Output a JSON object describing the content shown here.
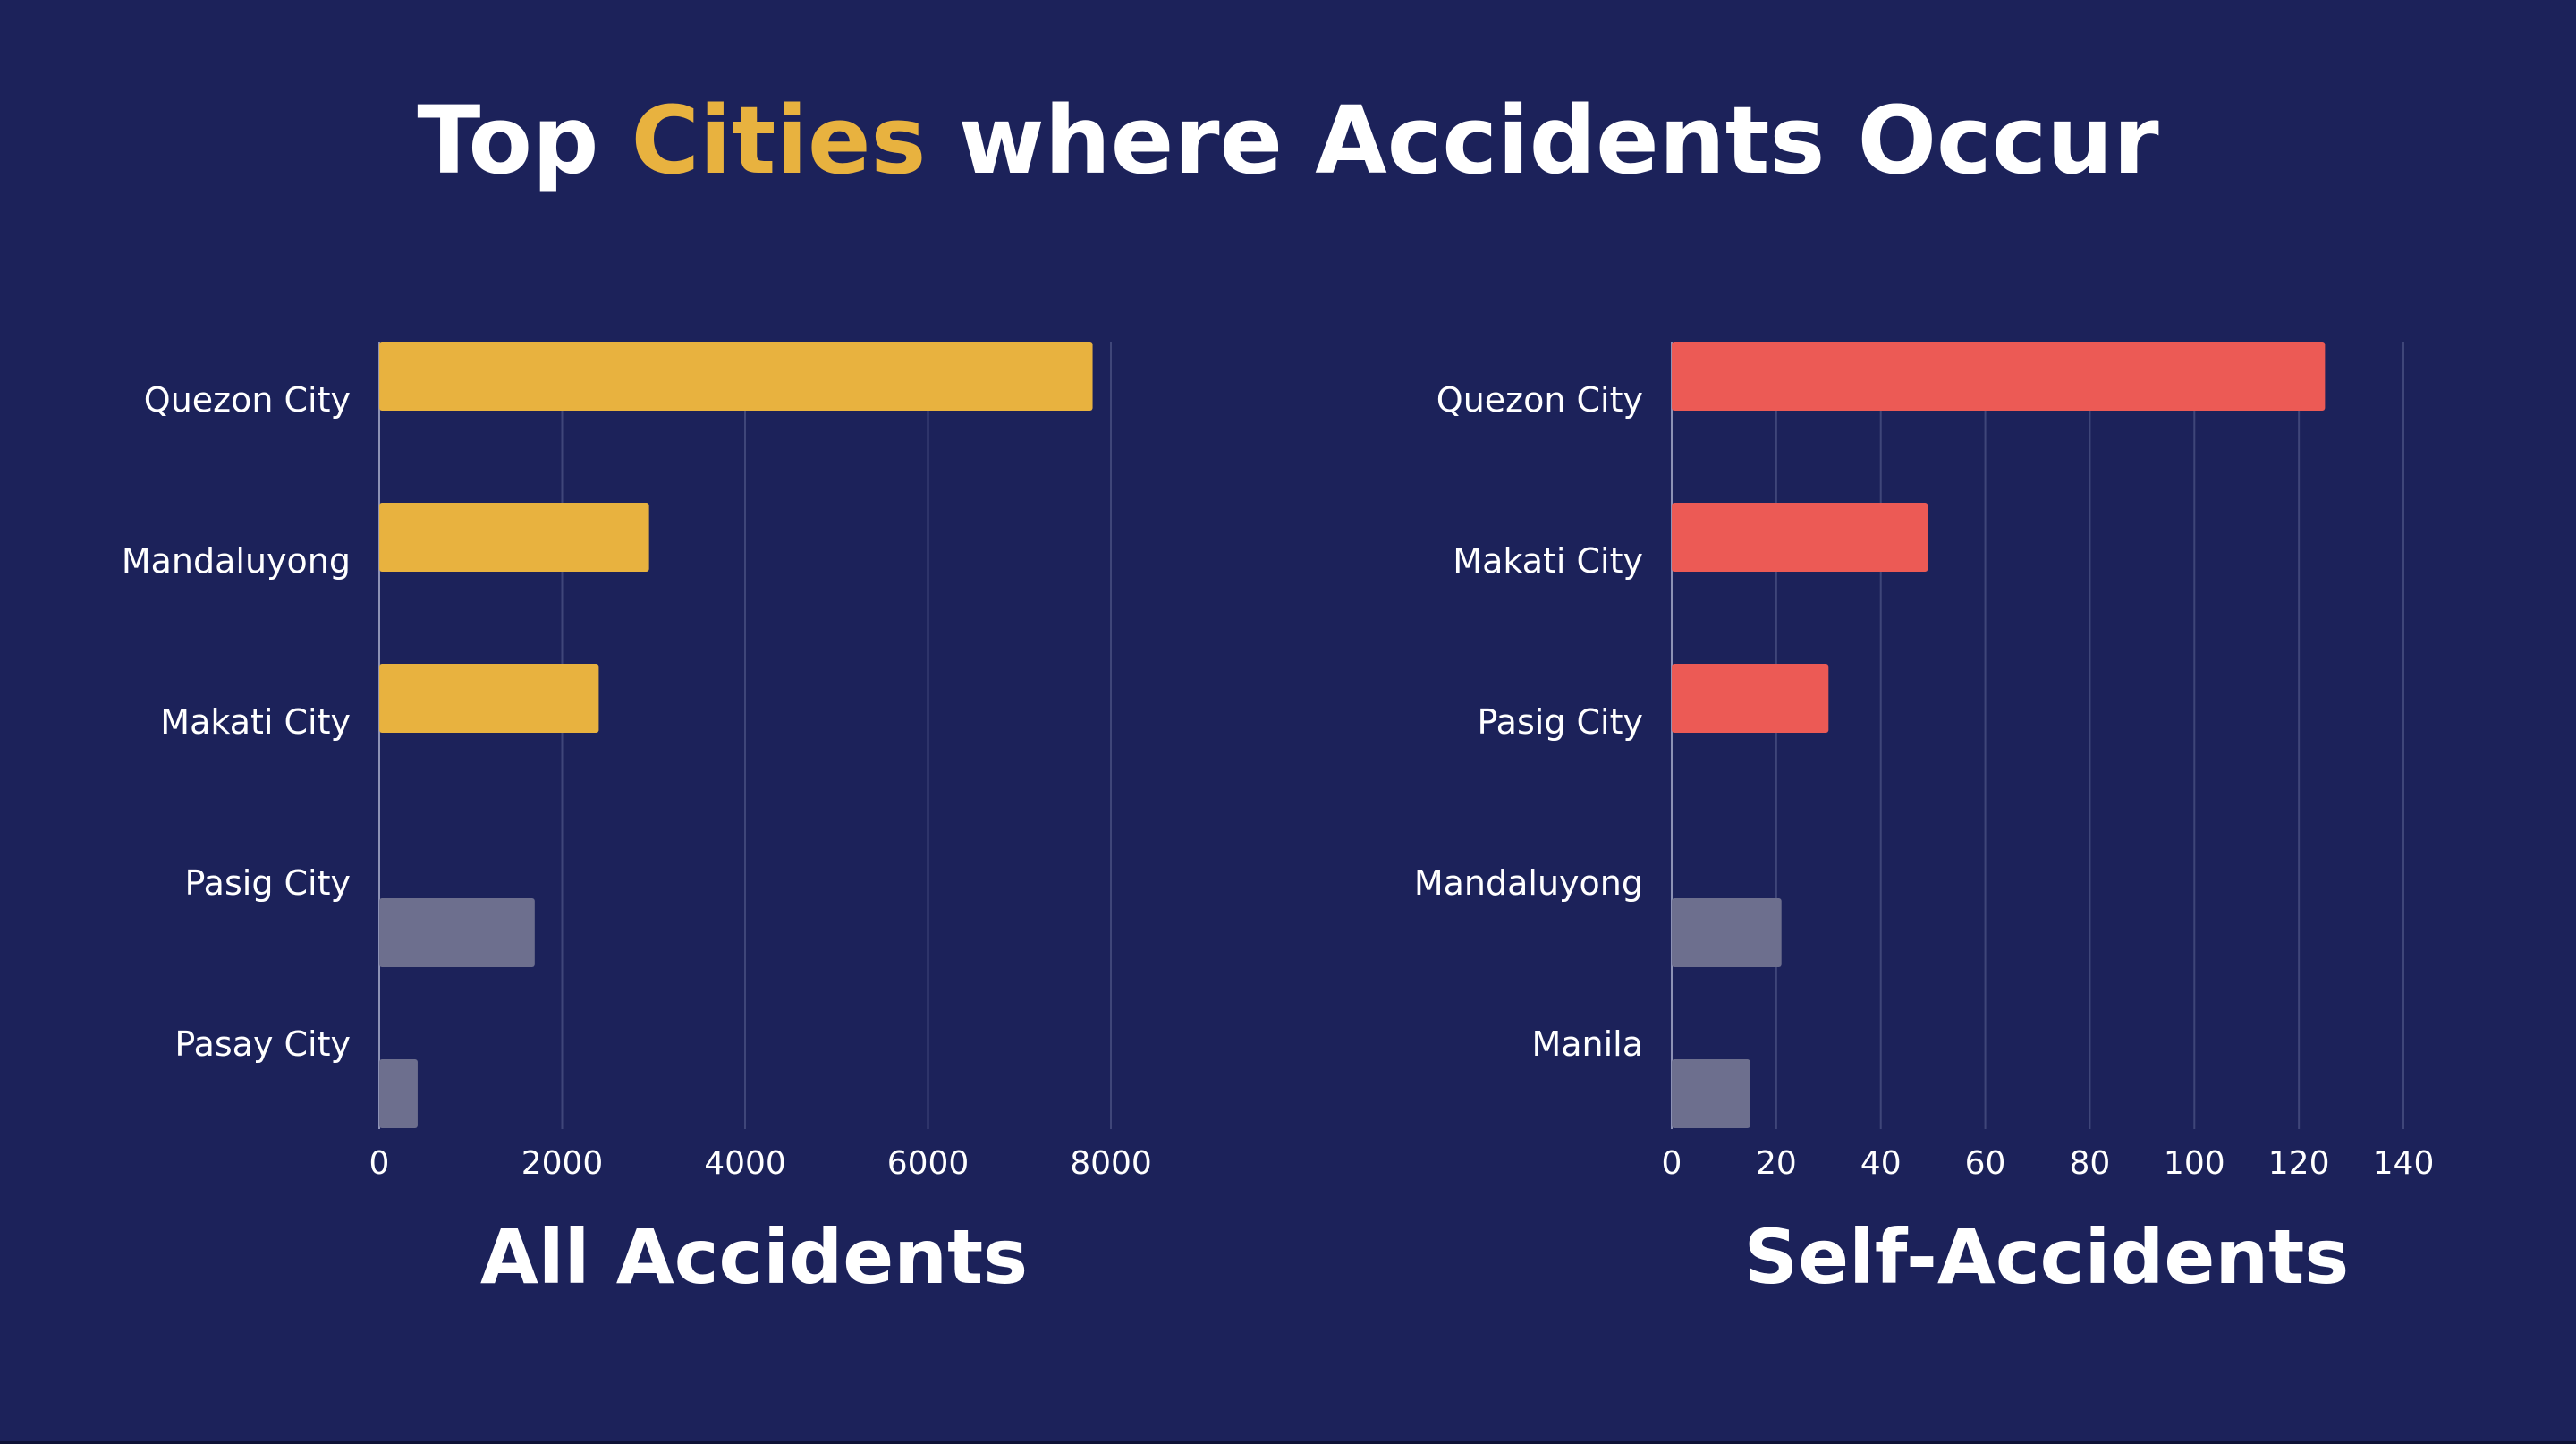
{
  "headline": {
    "part1": "Top ",
    "highlight": "Cities",
    "part2": " where Accidents Occur"
  },
  "colors": {
    "background": "#1c225a",
    "highlight_bar": "#e8b23f",
    "self_bar": "#ec5a55",
    "muted_bar": "#6d6f8e",
    "gridline": "#3f4679",
    "text": "#ffffff"
  },
  "chart_data": [
    {
      "type": "bar",
      "orientation": "horizontal",
      "title": "All Accidents",
      "categories": [
        "Quezon City",
        "Mandaluyong",
        "Makati City",
        "Pasig City",
        "Pasay City"
      ],
      "values": [
        7800,
        2950,
        2400,
        1700,
        420
      ],
      "highlighted": [
        true,
        true,
        true,
        false,
        false
      ],
      "xlim": [
        0,
        8000
      ],
      "xticks": [
        "0",
        "2000",
        "4000",
        "6000",
        "8000"
      ],
      "grid": true,
      "xlabel": "",
      "ylabel": ""
    },
    {
      "type": "bar",
      "orientation": "horizontal",
      "title": "Self-Accidents",
      "categories": [
        "Quezon City",
        "Makati City",
        "Pasig City",
        "Mandaluyong",
        "Manila"
      ],
      "values": [
        125,
        49,
        30,
        21,
        15
      ],
      "highlighted": [
        true,
        true,
        true,
        false,
        false
      ],
      "xlim": [
        0,
        140
      ],
      "xticks": [
        "0",
        "20",
        "40",
        "60",
        "80",
        "100",
        "120",
        "140"
      ],
      "grid": true,
      "xlabel": "",
      "ylabel": ""
    }
  ]
}
